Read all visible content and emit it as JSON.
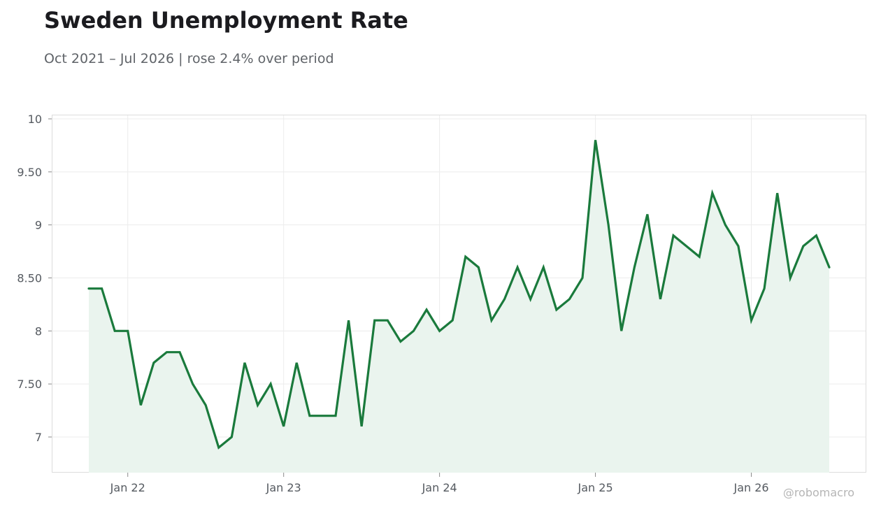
{
  "chart_data": {
    "type": "line",
    "title": "Sweden Unemployment Rate",
    "subtitle": "Oct 2021 – Jul 2026 | rose 2.4% over period",
    "xlabel": "",
    "ylabel": "",
    "ylim": [
      6.67,
      10.03
    ],
    "y_ticks": [
      7,
      7.5,
      8,
      8.5,
      9,
      9.5,
      10
    ],
    "y_tick_labels": [
      "7",
      "7.50",
      "8",
      "8.50",
      "9",
      "9.50",
      "10"
    ],
    "x_ticks": [
      "Jan 22",
      "Jan 23",
      "Jan 24",
      "Jan 25",
      "Jan 26"
    ],
    "grid": true,
    "fill_under_line": true,
    "color": "#1a7a3c",
    "fill_color": "#eaf4ee",
    "series": [
      {
        "x": [
          "2021-10",
          "2021-11",
          "2021-12",
          "2022-01",
          "2022-02",
          "2022-03",
          "2022-04",
          "2022-05",
          "2022-06",
          "2022-07",
          "2022-08",
          "2022-09",
          "2022-10",
          "2022-11",
          "2022-12",
          "2023-01",
          "2023-02",
          "2023-03",
          "2023-04",
          "2023-05",
          "2023-06",
          "2023-07",
          "2023-08",
          "2023-09",
          "2023-10",
          "2023-11",
          "2023-12",
          "2024-01",
          "2024-02",
          "2024-03",
          "2024-04",
          "2024-05",
          "2024-06",
          "2024-07",
          "2024-08",
          "2024-09",
          "2024-10",
          "2024-11",
          "2024-12",
          "2025-01",
          "2025-02",
          "2025-03",
          "2025-04",
          "2025-05",
          "2025-06",
          "2025-07",
          "2025-08",
          "2025-09",
          "2025-10",
          "2025-11",
          "2025-12",
          "2026-01",
          "2026-02",
          "2026-03",
          "2026-04",
          "2026-05",
          "2026-06",
          "2026-07"
        ],
        "values": [
          8.4,
          8.4,
          8.0,
          8.0,
          7.3,
          7.7,
          7.8,
          7.8,
          7.5,
          7.3,
          6.9,
          7.0,
          7.7,
          7.3,
          7.5,
          7.1,
          7.7,
          7.2,
          7.2,
          7.2,
          8.1,
          7.1,
          8.1,
          8.1,
          7.9,
          8.0,
          8.2,
          8.0,
          8.1,
          8.7,
          8.6,
          8.1,
          8.3,
          8.6,
          8.3,
          8.6,
          8.2,
          8.3,
          8.5,
          9.8,
          9.0,
          8.0,
          8.6,
          9.1,
          8.3,
          8.9,
          8.8,
          8.7,
          9.3,
          9.0,
          8.8,
          8.1,
          8.4,
          9.3,
          8.5,
          8.8,
          8.9,
          8.6
        ]
      }
    ]
  },
  "watermark": "@robomacro"
}
